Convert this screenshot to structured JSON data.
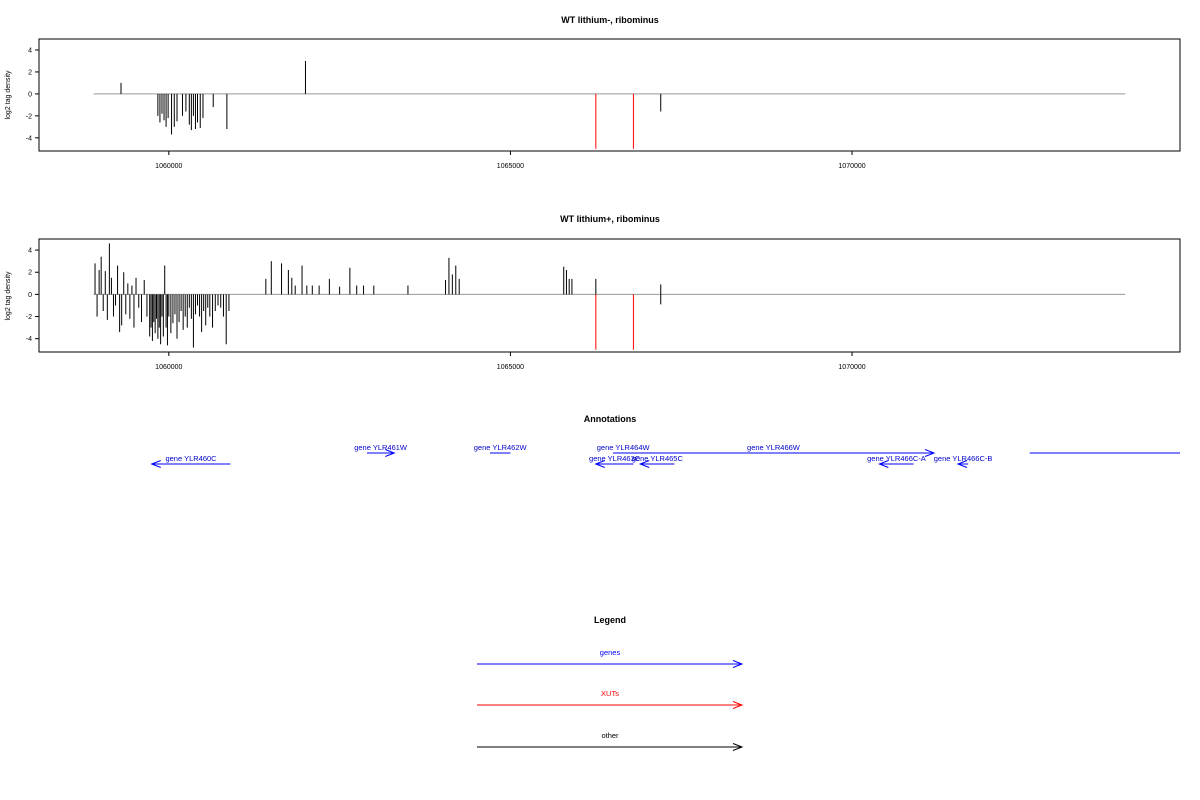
{
  "colors": {
    "gene": "#0000ff",
    "xut": "#ff0000",
    "other": "#000000",
    "baseline": "#999999"
  },
  "chart_data": [
    {
      "type": "bar",
      "title": "WT lithium-, ribominus",
      "ylabel": "log2 tag density",
      "xlim": [
        1058100,
        1074800
      ],
      "ylim": [
        -5.2,
        5
      ],
      "xticks": [
        1060000,
        1065000,
        1070000
      ],
      "xtick_labels": [
        "1060000",
        "1065000",
        "1070000"
      ],
      "yticks": [
        4,
        2,
        0,
        -2,
        -4
      ],
      "yticks_labels": [
        "4",
        "2",
        "0",
        "-2",
        "-4"
      ],
      "baseline_x": [
        1058900,
        1074000
      ],
      "series": [
        {
          "class": "other",
          "x": [
            1059300,
            1059840,
            1059870,
            1059900,
            1059930,
            1059960,
            1059990,
            1060040,
            1060080,
            1060120,
            1060200,
            1060250,
            1060300,
            1060330,
            1060360,
            1060390,
            1060420,
            1060460,
            1060500,
            1060650,
            1060850,
            1062000,
            1067200
          ],
          "y": [
            1.0,
            -2.0,
            -2.6,
            -1.8,
            -2.4,
            -3.0,
            -2.2,
            -3.7,
            -3.0,
            -2.5,
            -2.0,
            -1.6,
            -2.8,
            -3.3,
            -2.0,
            -3.2,
            -2.6,
            -3.1,
            -2.2,
            -1.2,
            -3.2,
            3.0,
            -1.6
          ]
        },
        {
          "class": "xut",
          "x": [
            1066250,
            1066800
          ],
          "y": [
            -5.0,
            -5.0
          ]
        }
      ]
    },
    {
      "type": "bar",
      "title": "WT lithium+, ribominus",
      "ylabel": "log2 tag density",
      "xlim": [
        1058100,
        1074800
      ],
      "ylim": [
        -5.2,
        5
      ],
      "xticks": [
        1060000,
        1065000,
        1070000
      ],
      "xtick_labels": [
        "1060000",
        "1065000",
        "1070000"
      ],
      "yticks": [
        4,
        2,
        0,
        -2,
        -4
      ],
      "yticks_labels": [
        "4",
        "2",
        "0",
        "-2",
        "-4"
      ],
      "baseline_x": [
        1058900,
        1074000
      ],
      "series": [
        {
          "class": "other",
          "x": [
            1058920,
            1058950,
            1058980,
            1059010,
            1059040,
            1059070,
            1059100,
            1059130,
            1059160,
            1059190,
            1059220,
            1059250,
            1059280,
            1059310,
            1059340,
            1059370,
            1059400,
            1059430,
            1059460,
            1059490,
            1059520,
            1059560,
            1059600,
            1059640,
            1059680,
            1059720,
            1059740,
            1059760,
            1059780,
            1059800,
            1059820,
            1059840,
            1059860,
            1059880,
            1059900,
            1059920,
            1059940,
            1059960,
            1059980,
            1060000,
            1060030,
            1060060,
            1060090,
            1060120,
            1060150,
            1060180,
            1060210,
            1060240,
            1060270,
            1060300,
            1060330,
            1060360,
            1060390,
            1060420,
            1060450,
            1060480,
            1060510,
            1060540,
            1060570,
            1060600,
            1060640,
            1060680,
            1060720,
            1060760,
            1060800,
            1060840,
            1060880,
            1061420,
            1061500,
            1061650,
            1061750,
            1061800,
            1061850,
            1061950,
            1062020,
            1062100,
            1062200,
            1062350,
            1062500,
            1062650,
            1062750,
            1062850,
            1063000,
            1063500,
            1064050,
            1064100,
            1064150,
            1064200,
            1064250,
            1065780,
            1065820,
            1065860,
            1065900,
            1066250,
            1067200,
            1067200
          ],
          "y": [
            2.8,
            -2.0,
            2.2,
            3.4,
            -1.5,
            2.1,
            -2.3,
            4.6,
            1.5,
            -2.0,
            -1.0,
            2.6,
            -3.4,
            -2.8,
            2.0,
            -1.8,
            1.0,
            -2.2,
            0.8,
            -3.0,
            1.5,
            -1.2,
            -2.5,
            1.3,
            -2.0,
            -3.8,
            -3.0,
            -4.2,
            -2.5,
            -3.5,
            -2.2,
            -4.0,
            -3.0,
            -4.5,
            -2.0,
            -3.8,
            2.6,
            -3.0,
            -4.6,
            -2.0,
            -3.5,
            -2.6,
            -1.8,
            -4.0,
            -2.5,
            -1.5,
            -3.2,
            -2.0,
            -3.0,
            -1.2,
            -2.2,
            -4.8,
            -1.8,
            -1.0,
            -2.0,
            -3.4,
            -1.5,
            -2.8,
            -1.2,
            -2.0,
            -3.0,
            -1.5,
            -1.0,
            -1.2,
            -2.0,
            -4.5,
            -1.5,
            1.4,
            3.0,
            2.8,
            2.2,
            1.5,
            0.8,
            2.6,
            0.8,
            0.8,
            0.8,
            1.4,
            0.7,
            2.4,
            0.8,
            0.8,
            0.8,
            0.8,
            1.3,
            3.3,
            1.8,
            2.6,
            1.4,
            2.5,
            2.2,
            1.4,
            1.4,
            1.4,
            0.9,
            -0.9
          ],
          "note": "values read off the plot"
        },
        {
          "class": "xut",
          "x": [
            1066250,
            1066800
          ],
          "y": [
            -5.0,
            -5.0
          ]
        }
      ]
    }
  ],
  "annotations": {
    "title": "Annotations",
    "genes": [
      {
        "label": "gene YLR460C",
        "start": 1060900,
        "end": 1059750,
        "row": 2
      },
      {
        "label": "gene YLR461W",
        "start": 1062900,
        "end": 1063300,
        "row": 1
      },
      {
        "label": "gene YLR462W",
        "start": 1064700,
        "end": 1065000,
        "row": 1,
        "arrow": false
      },
      {
        "label": "gene YLR463C",
        "start": 1066800,
        "end": 1066250,
        "row": 2
      },
      {
        "label": "gene YLR464W",
        "start": 1066600,
        "end": 1066700,
        "row": 1,
        "arrow": false
      },
      {
        "label": "gene YLR465C",
        "start": 1067400,
        "end": 1066900,
        "row": 2
      },
      {
        "label": "gene YLR466W",
        "start": 1066500,
        "end": 1071200,
        "row": 1
      },
      {
        "label": "gene YLR466C-A",
        "start": 1070900,
        "end": 1070400,
        "row": 2
      },
      {
        "label": "gene YLR466C-B",
        "start": 1071700,
        "end": 1071550,
        "row": 2
      },
      {
        "label": "",
        "start": 1072600,
        "end": 1074800,
        "row": 1,
        "arrow": false
      }
    ]
  },
  "legend": {
    "title": "Legend",
    "items": [
      {
        "label": "genes",
        "class": "gene"
      },
      {
        "label": "XUTs",
        "class": "xut"
      },
      {
        "label": "other",
        "class": "other"
      }
    ]
  }
}
